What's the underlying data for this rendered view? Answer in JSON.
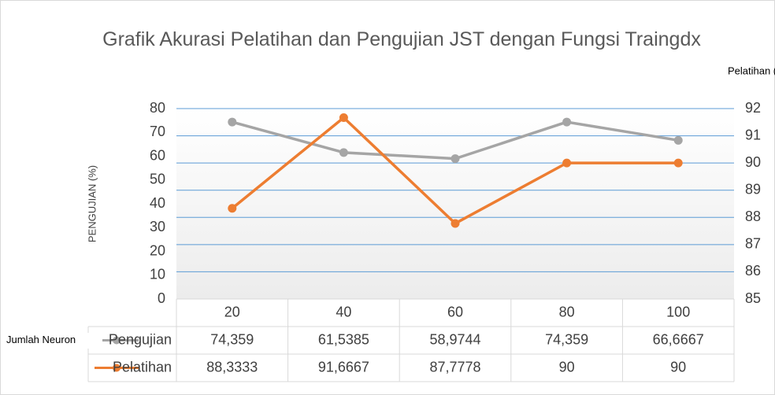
{
  "chart_data": {
    "type": "line",
    "title": "Grafik Akurasi Pelatihan dan Pengujian JST dengan Fungsi Traingdx",
    "x_label": "Jumlah Neuron",
    "y_label": "PENGUJIAN (%)",
    "y2_label": "Pelatihan (%)",
    "categories": [
      "20",
      "40",
      "60",
      "80",
      "100"
    ],
    "series": [
      {
        "name": "Pengujian",
        "color": "#a5a5a5",
        "values": [
          74.359,
          61.5385,
          58.9744,
          74.359,
          66.6667
        ],
        "value_labels": [
          "74,359",
          "61,5385",
          "58,9744",
          "74,359",
          "66,6667"
        ]
      },
      {
        "name": "Pelatihan",
        "color": "#ed7d31",
        "axis": "y2",
        "values": [
          88.3333,
          91.6667,
          87.7778,
          90,
          90
        ],
        "value_labels": [
          "88,3333",
          "91,6667",
          "87,7778",
          "90",
          "90"
        ]
      }
    ],
    "ylim": [
      0,
      80
    ],
    "yticks": [
      0,
      10,
      20,
      30,
      40,
      50,
      60,
      70,
      80
    ],
    "y2lim": [
      85,
      92
    ],
    "y2ticks": [
      85,
      86,
      87,
      88,
      89,
      90,
      91,
      92
    ],
    "grid": true
  }
}
